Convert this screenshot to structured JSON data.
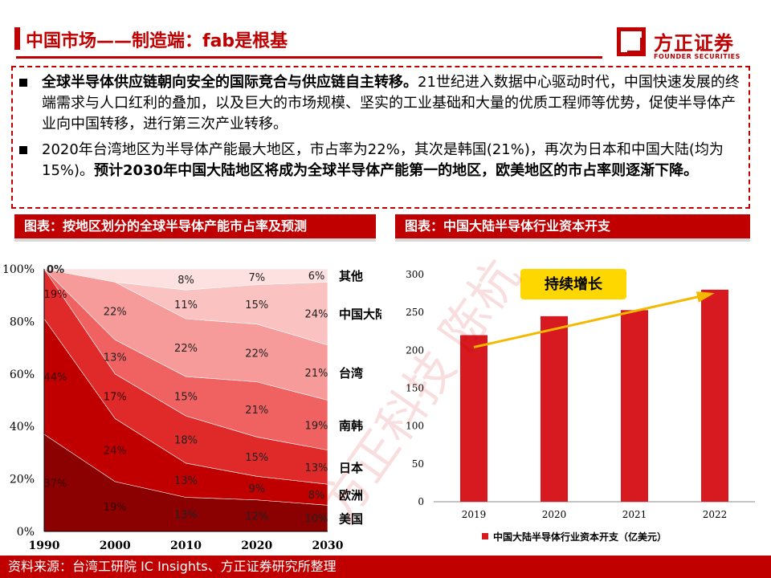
{
  "header": {
    "title": "中国市场——制造端：fab是根基",
    "logo_cn": "方正证券",
    "logo_en": "FOUNDER SECURITIES"
  },
  "bullets": [
    {
      "bold": "全球半导体供应链朝向安全的国际竞合与供应链自主转移。",
      "rest": "21世纪进入数据中心驱动时代，中国快速发展的终端需求与人口红利的叠加，以及巨大的市场规模、坚实的工业基础和大量的优质工程师等优势，促使半导体产业向中国转移，进行第三次产业转移。"
    },
    {
      "normal": "2020年台湾地区为半导体产能最大地区，市占率为22%，其次是韩国(21%)，再次为日本和中国大陆(均为15%)。",
      "bold": "预计2030年中国大陆地区将成为全球半导体产能第一的地区，欧美地区的市占率则逐渐下降。"
    }
  ],
  "left_chart_title": "图表：按地区划分的全球半导体产能市占率及预测",
  "right_chart_title": "图表：中国大陆半导体行业资本开支",
  "footer": "资料来源：台湾工研院  IC Insights、方正证券研究所整理",
  "watermark": "方正科技 陈杭",
  "colors": {
    "brand": "#c00000",
    "bar": "#d71920",
    "arrow": "#f5b800",
    "callout": "#ffd700"
  },
  "chart_data": [
    {
      "type": "area",
      "stacked": true,
      "x": [
        1990,
        2000,
        2010,
        2020,
        2030
      ],
      "ylim": [
        0,
        100
      ],
      "y_tick_labels": [
        "0%",
        "20%",
        "40%",
        "60%",
        "80%",
        "100%"
      ],
      "series": [
        {
          "name": "美国",
          "values": [
            37,
            19,
            13,
            12,
            10
          ],
          "labels": [
            "37%",
            "19%",
            "13%",
            "12%",
            "10%"
          ],
          "color": "#8b0000"
        },
        {
          "name": "欧洲",
          "values": [
            44,
            24,
            13,
            9,
            8
          ],
          "labels": [
            "44%",
            "24%",
            "13%",
            "9%",
            "8%"
          ],
          "color": "#c00000"
        },
        {
          "name": "日本",
          "values": [
            19,
            17,
            18,
            15,
            13
          ],
          "labels": [
            "19%",
            "17%",
            "18%",
            "15%",
            "13%"
          ],
          "color": "#e02a2a"
        },
        {
          "name": "南韩",
          "values": [
            0,
            13,
            15,
            21,
            19
          ],
          "labels": [
            "",
            "13%",
            "15%",
            "21%",
            "19%"
          ],
          "color": "#f06262"
        },
        {
          "name": "台湾",
          "values": [
            0,
            22,
            22,
            22,
            21
          ],
          "labels": [
            "",
            "22%",
            "22%",
            "22%",
            "21%"
          ],
          "color": "#f79a9a"
        },
        {
          "name": "中国大陆",
          "values": [
            0,
            0,
            11,
            15,
            24
          ],
          "labels": [
            "",
            "",
            "11%",
            "15%",
            "24%"
          ],
          "color": "#fbc2c2"
        },
        {
          "name": "其他",
          "values": [
            0,
            5,
            8,
            7,
            6
          ],
          "labels": [
            "0%",
            "",
            "8%",
            "7%",
            "6%"
          ],
          "color": "#fde0e0"
        }
      ]
    },
    {
      "type": "bar",
      "categories": [
        "2019",
        "2020",
        "2021",
        "2022"
      ],
      "values": [
        220,
        245,
        253,
        280
      ],
      "ylim": [
        0,
        300
      ],
      "y_ticks": [
        "0",
        "50",
        "100",
        "150",
        "200",
        "250",
        "300"
      ],
      "legend": "中国大陆半导体行业资本开支（亿美元）",
      "callout": "持续增长"
    }
  ]
}
